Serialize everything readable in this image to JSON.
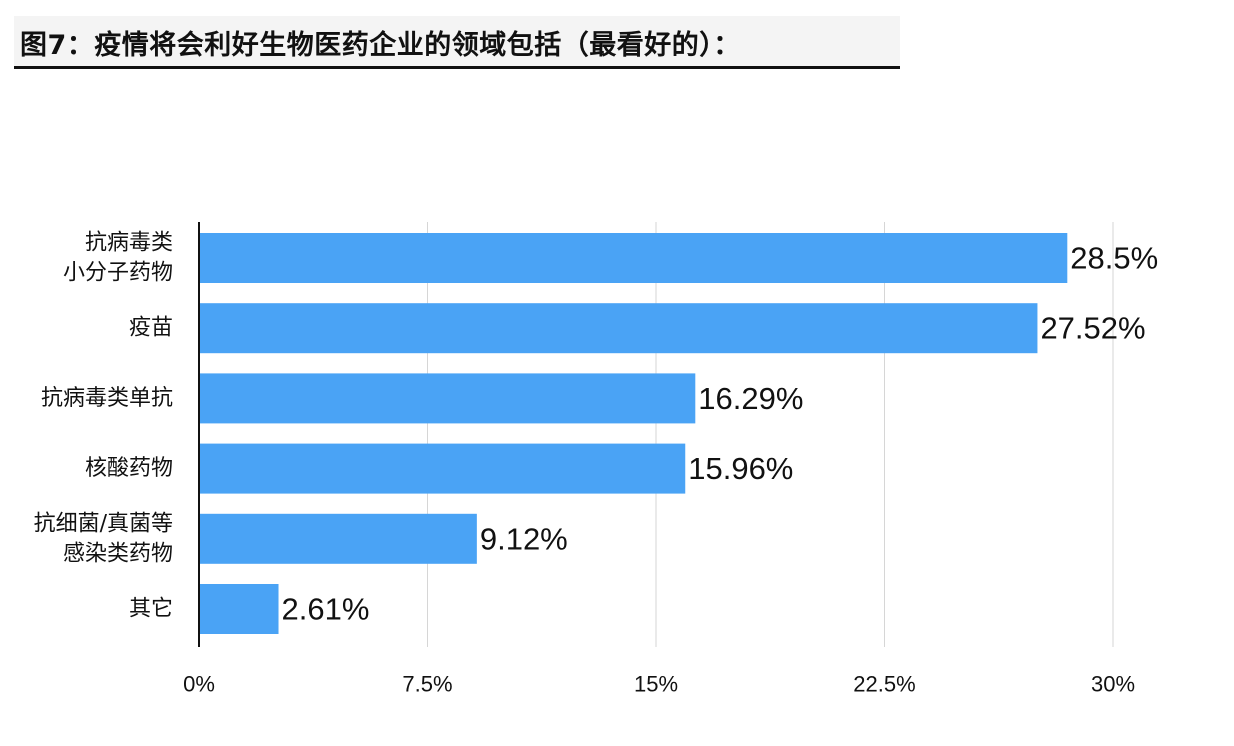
{
  "figure": {
    "title": "图7：疫情将会利好生物医药企业的领域包括（最看好的）："
  },
  "chart_data": {
    "type": "bar",
    "orientation": "horizontal",
    "title": "图7：疫情将会利好生物医药企业的领域包括（最看好的）：",
    "categories": [
      [
        "抗病毒类",
        "小分子药物"
      ],
      [
        "疫苗"
      ],
      [
        "抗病毒类单抗"
      ],
      [
        "核酸药物"
      ],
      [
        "抗细菌/真菌等",
        "感染类药物"
      ],
      [
        "其它"
      ]
    ],
    "values": [
      28.5,
      27.52,
      16.29,
      15.96,
      9.12,
      2.61
    ],
    "value_labels": [
      "28.5%",
      "27.52%",
      "16.29%",
      "15.96%",
      "9.12%",
      "2.61%"
    ],
    "xlim": [
      0,
      30
    ],
    "xticks": [
      0,
      7.5,
      15,
      22.5,
      30
    ],
    "xtick_labels": [
      "0%",
      "7.5%",
      "15%",
      "22.5%",
      "30%"
    ],
    "xlabel": "",
    "ylabel": "",
    "grid": "vertical",
    "legend": "none",
    "bar_color": "#4aa3f5",
    "grid_color": "#d6d6d6",
    "axis_color": "#111111",
    "text_color": "#111111"
  }
}
